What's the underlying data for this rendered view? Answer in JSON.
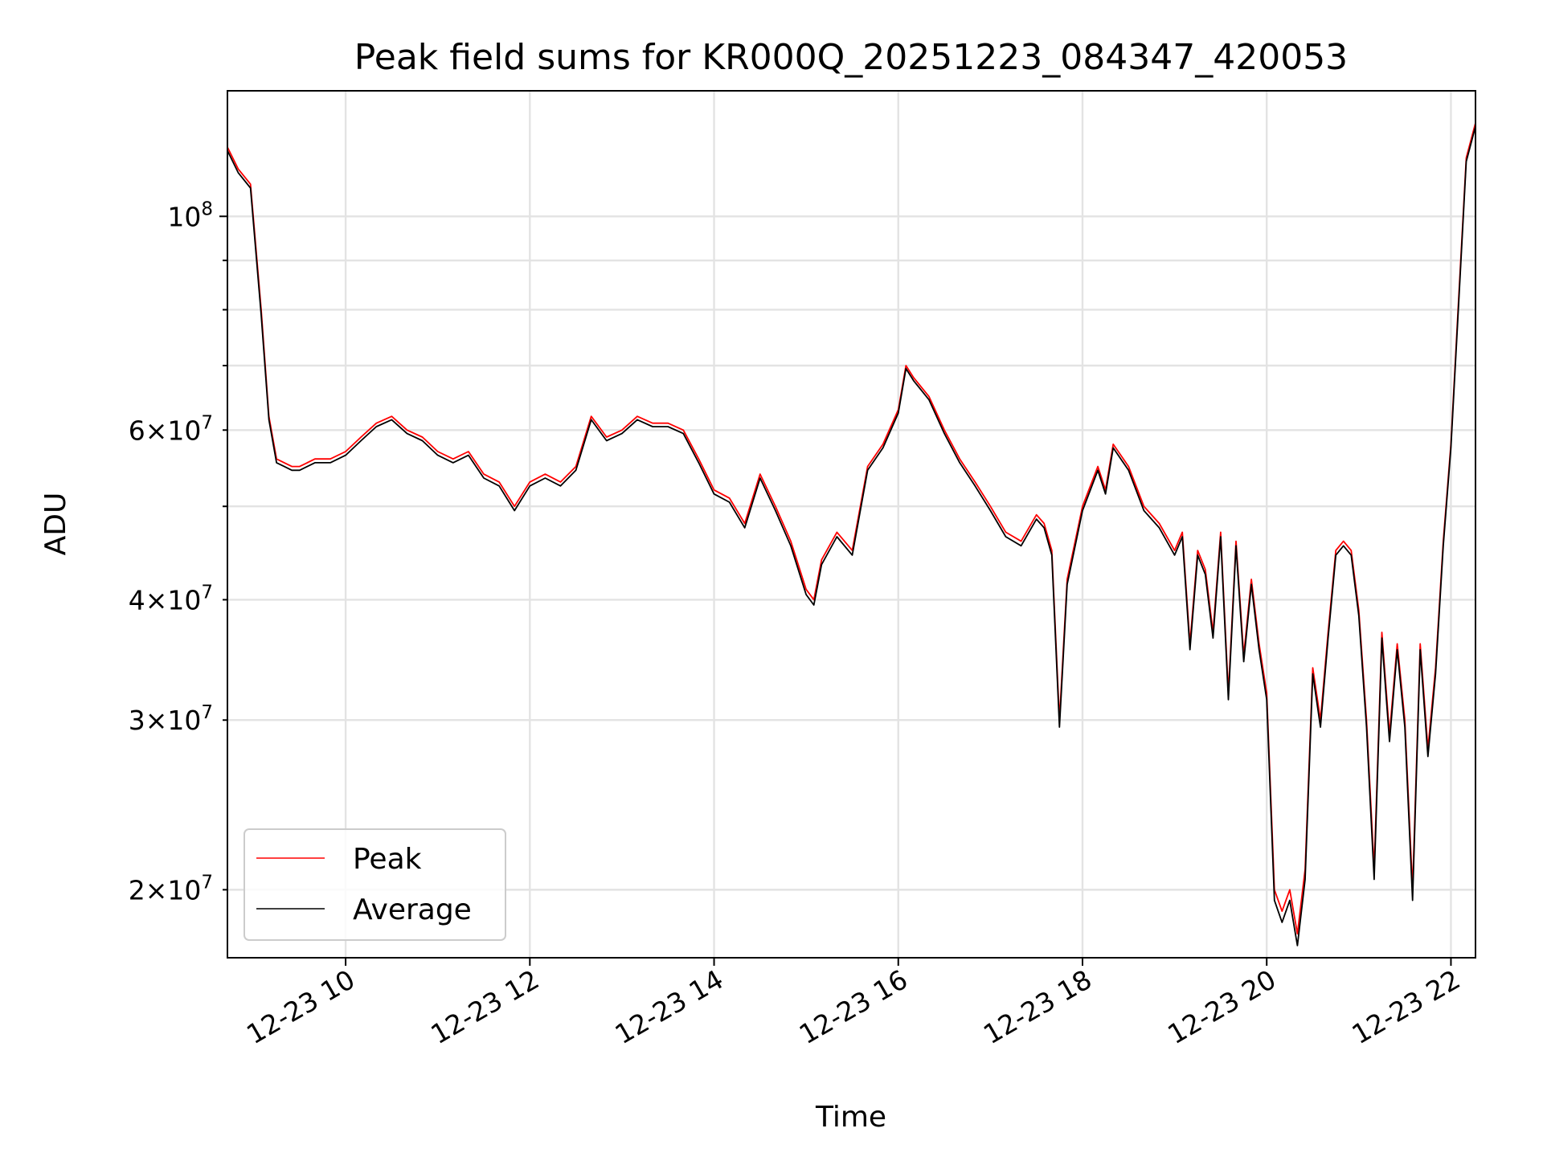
{
  "chart_data": {
    "type": "line",
    "title": "Peak field sums for KR000Q_20251223_084347_420053",
    "xlabel": "Time",
    "ylabel": "ADU",
    "y_scale": "log",
    "xlim": [
      "2025-12-23 08:43",
      "2025-12-23 22:16"
    ],
    "ylim": [
      17000000,
      135000000
    ],
    "x_ticks": [
      {
        "value": "2025-12-23 10:00",
        "label": "12-23 10"
      },
      {
        "value": "2025-12-23 12:00",
        "label": "12-23 12"
      },
      {
        "value": "2025-12-23 14:00",
        "label": "12-23 14"
      },
      {
        "value": "2025-12-23 16:00",
        "label": "12-23 16"
      },
      {
        "value": "2025-12-23 18:00",
        "label": "12-23 18"
      },
      {
        "value": "2025-12-23 20:00",
        "label": "12-23 20"
      },
      {
        "value": "2025-12-23 22:00",
        "label": "12-23 22"
      }
    ],
    "y_ticks_major": [
      {
        "value": 100000000,
        "base": "10",
        "exp": "8"
      }
    ],
    "y_ticks_minor_labeled": [
      {
        "value": 20000000,
        "mant": "2",
        "base": "10",
        "exp": "7"
      },
      {
        "value": 30000000,
        "mant": "3",
        "base": "10",
        "exp": "7"
      },
      {
        "value": 40000000,
        "mant": "4",
        "base": "10",
        "exp": "7"
      },
      {
        "value": 60000000,
        "mant": "6",
        "base": "10",
        "exp": "7"
      }
    ],
    "y_ticks_minor_unlabeled": [
      50000000,
      70000000,
      80000000,
      90000000
    ],
    "grid": true,
    "legend_position": "lower-left",
    "series": [
      {
        "name": "Peak",
        "color": "#ff0000"
      },
      {
        "name": "Average",
        "color": "#000000"
      }
    ],
    "x": [
      "2025-12-23 08:43",
      "2025-12-23 08:50",
      "2025-12-23 08:58",
      "2025-12-23 09:05",
      "2025-12-23 09:10",
      "2025-12-23 09:15",
      "2025-12-23 09:20",
      "2025-12-23 09:25",
      "2025-12-23 09:30",
      "2025-12-23 09:40",
      "2025-12-23 09:50",
      "2025-12-23 10:00",
      "2025-12-23 10:10",
      "2025-12-23 10:20",
      "2025-12-23 10:30",
      "2025-12-23 10:40",
      "2025-12-23 10:50",
      "2025-12-23 11:00",
      "2025-12-23 11:10",
      "2025-12-23 11:20",
      "2025-12-23 11:30",
      "2025-12-23 11:40",
      "2025-12-23 11:50",
      "2025-12-23 12:00",
      "2025-12-23 12:10",
      "2025-12-23 12:20",
      "2025-12-23 12:30",
      "2025-12-23 12:40",
      "2025-12-23 12:50",
      "2025-12-23 13:00",
      "2025-12-23 13:10",
      "2025-12-23 13:20",
      "2025-12-23 13:30",
      "2025-12-23 13:40",
      "2025-12-23 13:50",
      "2025-12-23 14:00",
      "2025-12-23 14:10",
      "2025-12-23 14:20",
      "2025-12-23 14:30",
      "2025-12-23 14:40",
      "2025-12-23 14:50",
      "2025-12-23 15:00",
      "2025-12-23 15:05",
      "2025-12-23 15:10",
      "2025-12-23 15:20",
      "2025-12-23 15:30",
      "2025-12-23 15:40",
      "2025-12-23 15:50",
      "2025-12-23 16:00",
      "2025-12-23 16:05",
      "2025-12-23 16:10",
      "2025-12-23 16:20",
      "2025-12-23 16:30",
      "2025-12-23 16:40",
      "2025-12-23 16:50",
      "2025-12-23 17:00",
      "2025-12-23 17:10",
      "2025-12-23 17:20",
      "2025-12-23 17:30",
      "2025-12-23 17:35",
      "2025-12-23 17:40",
      "2025-12-23 17:45",
      "2025-12-23 17:50",
      "2025-12-23 18:00",
      "2025-12-23 18:10",
      "2025-12-23 18:15",
      "2025-12-23 18:20",
      "2025-12-23 18:30",
      "2025-12-23 18:40",
      "2025-12-23 18:50",
      "2025-12-23 19:00",
      "2025-12-23 19:05",
      "2025-12-23 19:10",
      "2025-12-23 19:15",
      "2025-12-23 19:20",
      "2025-12-23 19:25",
      "2025-12-23 19:30",
      "2025-12-23 19:35",
      "2025-12-23 19:40",
      "2025-12-23 19:45",
      "2025-12-23 19:50",
      "2025-12-23 19:55",
      "2025-12-23 20:00",
      "2025-12-23 20:05",
      "2025-12-23 20:10",
      "2025-12-23 20:15",
      "2025-12-23 20:20",
      "2025-12-23 20:25",
      "2025-12-23 20:30",
      "2025-12-23 20:35",
      "2025-12-23 20:40",
      "2025-12-23 20:45",
      "2025-12-23 20:50",
      "2025-12-23 20:55",
      "2025-12-23 21:00",
      "2025-12-23 21:05",
      "2025-12-23 21:10",
      "2025-12-23 21:15",
      "2025-12-23 21:20",
      "2025-12-23 21:25",
      "2025-12-23 21:30",
      "2025-12-23 21:35",
      "2025-12-23 21:40",
      "2025-12-23 21:45",
      "2025-12-23 21:50",
      "2025-12-23 21:55",
      "2025-12-23 22:00",
      "2025-12-23 22:05",
      "2025-12-23 22:10",
      "2025-12-23 22:16"
    ],
    "peak": [
      118000000,
      112000000,
      108000000,
      80000000,
      62000000,
      56000000,
      55500000,
      55000000,
      55000000,
      56000000,
      56000000,
      57000000,
      59000000,
      61000000,
      62000000,
      60000000,
      59000000,
      57000000,
      56000000,
      57000000,
      54000000,
      53000000,
      50000000,
      53000000,
      54000000,
      53000000,
      55000000,
      62000000,
      59000000,
      60000000,
      62000000,
      61000000,
      61000000,
      60000000,
      56000000,
      52000000,
      51000000,
      48000000,
      54000000,
      50000000,
      46000000,
      41000000,
      40000000,
      44000000,
      47000000,
      45000000,
      55000000,
      58000000,
      63000000,
      70000000,
      68000000,
      65000000,
      60000000,
      56000000,
      53000000,
      50000000,
      47000000,
      46000000,
      49000000,
      48000000,
      45000000,
      30000000,
      42000000,
      50000000,
      55000000,
      52000000,
      58000000,
      55000000,
      50000000,
      48000000,
      45000000,
      47000000,
      36000000,
      45000000,
      43000000,
      37000000,
      47000000,
      32000000,
      46000000,
      35000000,
      42000000,
      36000000,
      32000000,
      20000000,
      19000000,
      20000000,
      18000000,
      21000000,
      34000000,
      30000000,
      37000000,
      45000000,
      46000000,
      45000000,
      39000000,
      30000000,
      21000000,
      37000000,
      29000000,
      36000000,
      30000000,
      20000000,
      36000000,
      28000000,
      34000000,
      46000000,
      58000000,
      82000000,
      115000000,
      125000000
    ],
    "average": [
      117000000,
      111000000,
      107000000,
      79000000,
      61500000,
      55500000,
      55000000,
      54500000,
      54500000,
      55500000,
      55500000,
      56500000,
      58500000,
      60500000,
      61500000,
      59500000,
      58500000,
      56500000,
      55500000,
      56500000,
      53500000,
      52500000,
      49500000,
      52500000,
      53500000,
      52500000,
      54500000,
      61500000,
      58500000,
      59500000,
      61500000,
      60500000,
      60500000,
      59500000,
      55500000,
      51500000,
      50500000,
      47500000,
      53500000,
      49500000,
      45500000,
      40500000,
      39500000,
      43500000,
      46500000,
      44500000,
      54500000,
      57500000,
      62500000,
      69500000,
      67500000,
      64500000,
      59500000,
      55500000,
      52500000,
      49500000,
      46500000,
      45500000,
      48500000,
      47500000,
      44500000,
      29500000,
      41500000,
      49500000,
      54500000,
      51500000,
      57500000,
      54500000,
      49500000,
      47500000,
      44500000,
      46500000,
      35500000,
      44500000,
      42500000,
      36500000,
      46500000,
      31500000,
      45500000,
      34500000,
      41500000,
      35500000,
      31500000,
      19500000,
      18500000,
      19500000,
      17500000,
      20500000,
      33500000,
      29500000,
      36500000,
      44500000,
      45500000,
      44500000,
      38500000,
      29500000,
      20500000,
      36500000,
      28500000,
      35500000,
      29500000,
      19500000,
      35500000,
      27500000,
      33500000,
      45500000,
      57500000,
      81000000,
      114000000,
      124000000
    ]
  }
}
